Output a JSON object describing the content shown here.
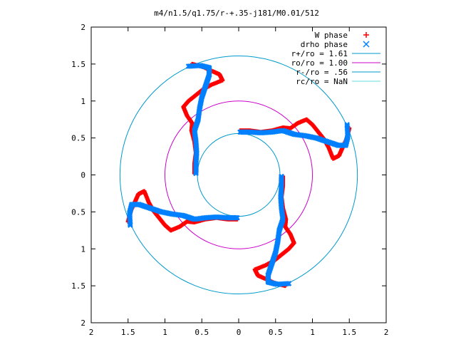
{
  "chart_data": {
    "type": "scatter",
    "title": "m4/n1.5/q1.75/r-+.35-j181/M0.01/512",
    "xlim": [
      -2,
      2
    ],
    "ylim": [
      -2,
      2
    ],
    "x_tick_values": [
      -2,
      -1.5,
      -1,
      -0.5,
      0,
      0.5,
      1,
      1.5,
      2
    ],
    "x_tick_labels": [
      "2",
      "1.5",
      "1",
      "0.5",
      "0",
      "0.5",
      "1",
      "1.5",
      "2"
    ],
    "y_tick_values": [
      2,
      1.5,
      1,
      0.5,
      0,
      -0.5,
      -1,
      -1.5,
      -2
    ],
    "y_tick_labels": [
      "2",
      "1.5",
      "1",
      "0.5",
      "0",
      "0.5",
      "1",
      "1.5",
      "2"
    ],
    "grid": false,
    "legend_position": "top-right",
    "arms": 4,
    "series": [
      {
        "name": "W phase",
        "kind": "points",
        "marker": "+",
        "color": "#ff0000",
        "arm_points": [
          [
            0.02,
            0.6
          ],
          [
            0.15,
            0.6
          ],
          [
            0.3,
            0.58
          ],
          [
            0.45,
            0.6
          ],
          [
            0.6,
            0.64
          ],
          [
            0.7,
            0.63
          ],
          [
            0.8,
            0.7
          ],
          [
            0.92,
            0.75
          ],
          [
            1.0,
            0.68
          ],
          [
            1.08,
            0.58
          ],
          [
            1.16,
            0.48
          ],
          [
            1.22,
            0.37
          ],
          [
            1.28,
            0.22
          ],
          [
            1.36,
            0.26
          ],
          [
            1.4,
            0.35
          ],
          [
            1.46,
            0.48
          ],
          [
            1.5,
            0.63
          ]
        ]
      },
      {
        "name": "drho phase",
        "kind": "points",
        "marker": "x",
        "color": "#0080ff",
        "arm_points": [
          [
            0.02,
            0.58
          ],
          [
            0.15,
            0.58
          ],
          [
            0.3,
            0.57
          ],
          [
            0.45,
            0.58
          ],
          [
            0.6,
            0.6
          ],
          [
            0.75,
            0.55
          ],
          [
            0.9,
            0.53
          ],
          [
            1.05,
            0.5
          ],
          [
            1.2,
            0.45
          ],
          [
            1.35,
            0.4
          ],
          [
            1.45,
            0.4
          ],
          [
            1.48,
            0.52
          ],
          [
            1.47,
            0.68
          ]
        ]
      },
      {
        "name": "r+/ro = 1.61",
        "kind": "circle",
        "radius": 1.61,
        "color": "#0099cc"
      },
      {
        "name": "ro/ro = 1.00",
        "kind": "circle",
        "radius": 1.0,
        "color": "#cc00cc"
      },
      {
        "name": "r-/ro = .56",
        "kind": "circle",
        "radius": 0.56,
        "color": "#0099cc"
      },
      {
        "name": "rc/ro = NaN",
        "kind": "circle",
        "radius": null,
        "color": "#66dddd"
      }
    ]
  }
}
